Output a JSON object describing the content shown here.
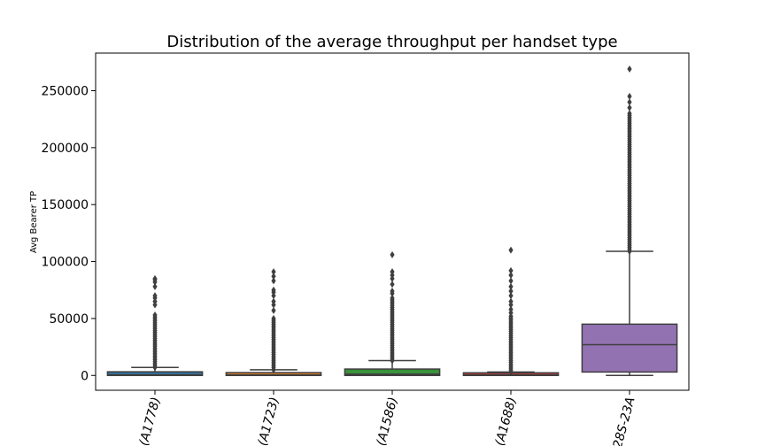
{
  "chart_data": {
    "type": "box",
    "title": "Distribution of the average throughput per handset type",
    "xlabel": "",
    "ylabel": "Avg Bearer TP",
    "ylim": [
      -13000,
      283000
    ],
    "yticks": [
      0,
      50000,
      100000,
      150000,
      200000,
      250000
    ],
    "grid": false,
    "categories": [
      "(A1778)",
      "(A1723)",
      "(A1586)",
      "(A1688)",
      "28S-23A"
    ],
    "boxes": [
      {
        "category": "(A1778)",
        "color": "#3274a1",
        "whisker_low": 0,
        "q1": 0,
        "median": 600,
        "q3": 3200,
        "whisker_high": 7000,
        "outlier_range": [
          7000,
          53000
        ],
        "outliers": [
          62000,
          65000,
          68000,
          70000,
          78000,
          82000,
          84000,
          85000
        ]
      },
      {
        "category": "(A1723)",
        "color": "#e1812c",
        "whisker_low": 0,
        "q1": 0,
        "median": 500,
        "q3": 2500,
        "whisker_high": 5000,
        "outlier_range": [
          5000,
          50000
        ],
        "outliers": [
          57000,
          62000,
          65000,
          70000,
          73000,
          75000,
          83000,
          87000,
          91000
        ]
      },
      {
        "category": "(A1586)",
        "color": "#3a923a",
        "whisker_low": 0,
        "q1": 0,
        "median": 1200,
        "q3": 5600,
        "whisker_high": 13000,
        "outlier_range": [
          13000,
          68000
        ],
        "outliers": [
          72000,
          74000,
          80000,
          85000,
          88000,
          91000,
          106000
        ]
      },
      {
        "category": "(A1688)",
        "color": "#c03d3e",
        "whisker_low": 0,
        "q1": 0,
        "median": 500,
        "q3": 1500,
        "whisker_high": 3000,
        "outlier_range": [
          3000,
          52000
        ],
        "outliers": [
          55000,
          58000,
          62000,
          65000,
          70000,
          74000,
          78000,
          83000,
          88000,
          92000,
          110000
        ]
      },
      {
        "category": "28S-23A",
        "color": "#9372b2",
        "whisker_low": 0,
        "q1": 3000,
        "median": 27000,
        "q3": 45000,
        "whisker_high": 109000,
        "outlier_range": [
          109000,
          230000
        ],
        "outliers": [
          235000,
          240000,
          245000,
          269000
        ]
      }
    ]
  }
}
